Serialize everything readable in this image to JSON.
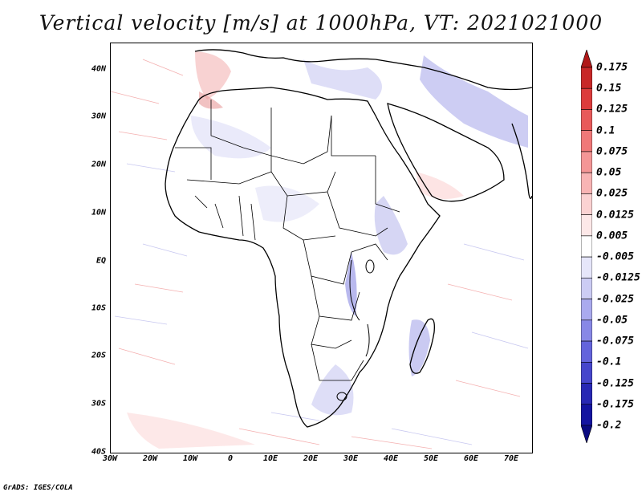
{
  "title": "Vertical velocity [m/s] at 1000hPa, VT: 2021021000",
  "map": {
    "lat_labels": [
      "40N",
      "30N",
      "20N",
      "10N",
      "EQ",
      "10S",
      "20S",
      "30S",
      "40S"
    ],
    "lon_labels": [
      "30W",
      "20W",
      "10W",
      "0",
      "10E",
      "20E",
      "30E",
      "40E",
      "50E",
      "60E",
      "70E"
    ],
    "extent": {
      "lon": [
        -30,
        75
      ],
      "lat": [
        -40,
        45
      ]
    }
  },
  "colorbar": {
    "levels": [
      "0.175",
      "0.15",
      "0.125",
      "0.1",
      "0.075",
      "0.05",
      "0.025",
      "0.0125",
      "0.005",
      "-0.005",
      "-0.0125",
      "-0.025",
      "-0.05",
      "-0.075",
      "-0.1",
      "-0.125",
      "-0.175",
      "-0.2"
    ],
    "colors": [
      "#b01818",
      "#c82828",
      "#dc3c3c",
      "#e85a5a",
      "#f07878",
      "#f49696",
      "#f8b4b4",
      "#fbd2d2",
      "#fde8e8",
      "#ffffff",
      "#e6e6fa",
      "#ccccf4",
      "#aaaaee",
      "#8888e6",
      "#6464dc",
      "#4646cc",
      "#2828b4",
      "#1414a0",
      "#0a0a80"
    ]
  },
  "credit": "GrADS: IGES/COLA"
}
